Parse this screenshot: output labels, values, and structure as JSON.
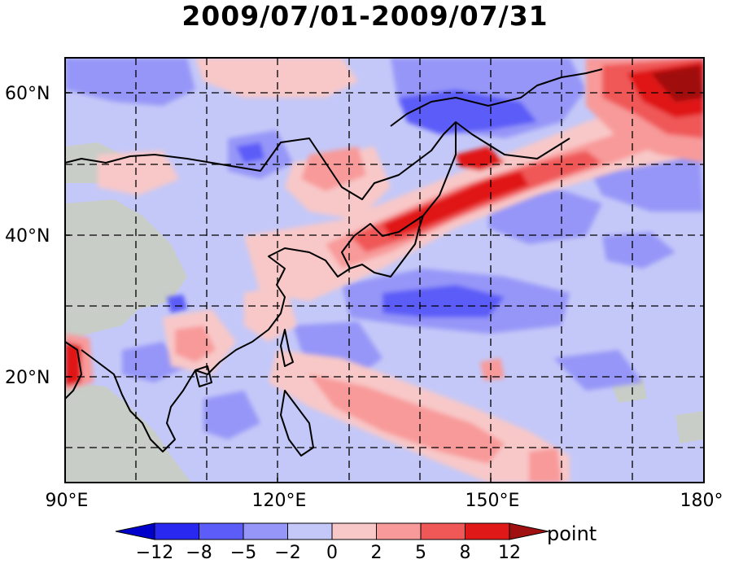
{
  "title": "2009/07/01-2009/07/31",
  "map": {
    "lon_range": [
      90,
      180
    ],
    "lat_range": [
      5,
      65
    ],
    "grid_style": "dashed",
    "land_missing_color": "#c8cdc8"
  },
  "axes": {
    "y_labels": [
      {
        "lat": 60,
        "text": "60°N"
      },
      {
        "lat": 40,
        "text": "40°N"
      },
      {
        "lat": 20,
        "text": "20°N"
      }
    ],
    "x_labels": [
      {
        "lon": 90,
        "text": "90°E"
      },
      {
        "lon": 120,
        "text": "120°E"
      },
      {
        "lon": 150,
        "text": "150°E"
      },
      {
        "lon": 180,
        "text": "180°"
      }
    ]
  },
  "colorbar": {
    "unit": "point",
    "levels": [
      -12,
      -8,
      -5,
      -2,
      0,
      2,
      5,
      8,
      12
    ],
    "labels": [
      "-12",
      "-8",
      "-5",
      "-2",
      "0",
      "2",
      "5",
      "8",
      "12"
    ],
    "colors": [
      "#0000cc",
      "#2828f0",
      "#5c5cf8",
      "#9696f8",
      "#c4c8f8",
      "#f8c8c8",
      "#f89a9a",
      "#f05858",
      "#e01818",
      "#a01010"
    ]
  },
  "regions": [
    {
      "name": "kuroshio-extension-band",
      "level": "8",
      "color": "#e01818"
    },
    {
      "name": "sea-of-okhotsk",
      "level": "-5",
      "color": "#5c5cf8"
    },
    {
      "name": "bering-sea-northeast",
      "level": "8",
      "color": "#e01818"
    }
  ]
}
